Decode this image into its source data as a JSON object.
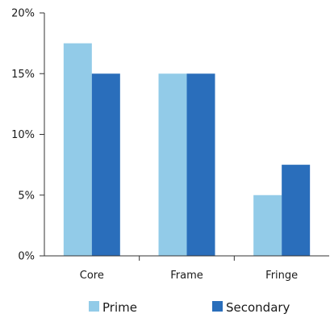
{
  "chart_data": {
    "type": "bar",
    "title": "",
    "xlabel": "",
    "ylabel": "",
    "categories": [
      "Core",
      "Frame",
      "Fringe"
    ],
    "series": [
      {
        "name": "Prime",
        "values": [
          17.5,
          15,
          5
        ],
        "color": "#92cbe8"
      },
      {
        "name": "Secondary",
        "values": [
          15,
          15,
          7.5
        ],
        "color": "#2a6ebb"
      }
    ],
    "ylim": [
      0,
      20
    ],
    "yticks": [
      0,
      5,
      10,
      15,
      20
    ],
    "ytick_labels": [
      "0%",
      "5%",
      "10%",
      "15%",
      "20%"
    ],
    "grid": false,
    "legend_position": "bottom"
  }
}
